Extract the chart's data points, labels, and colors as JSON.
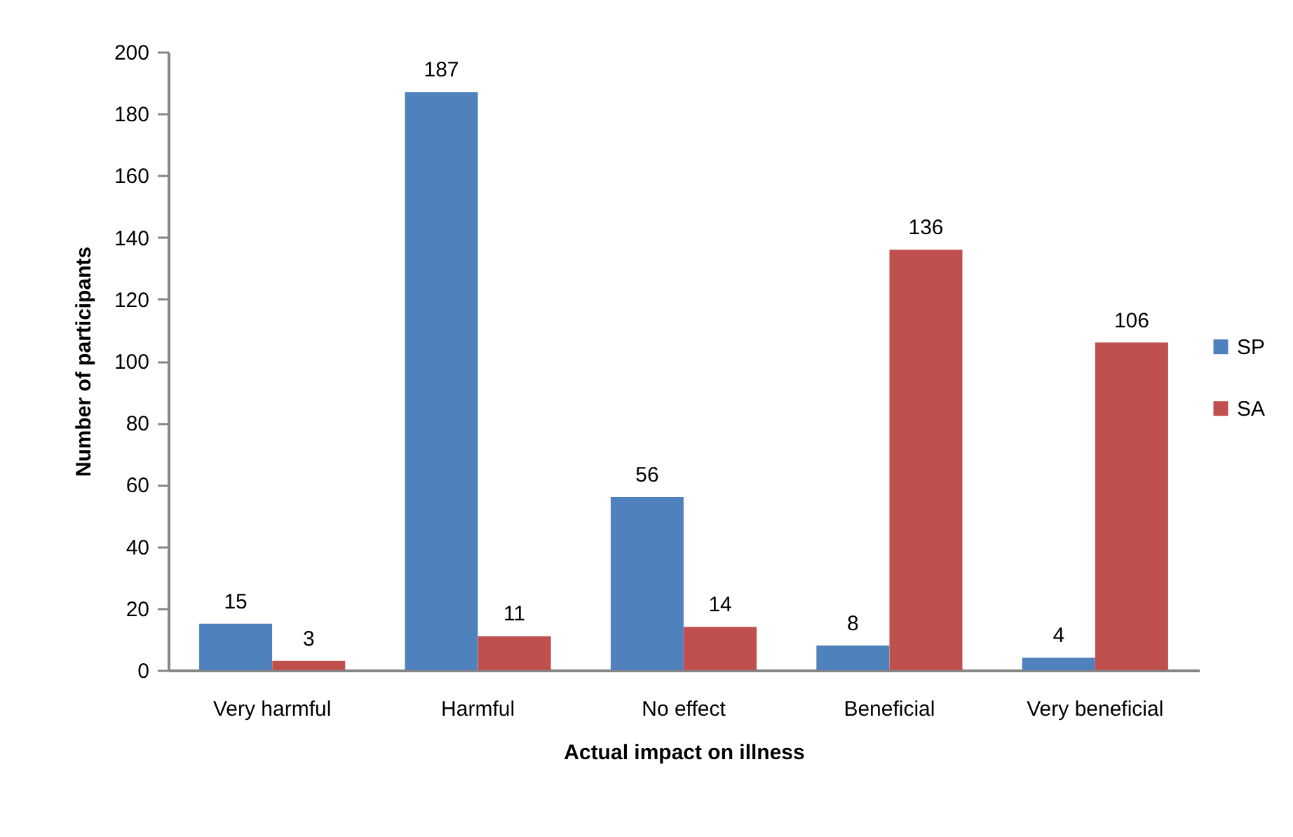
{
  "chart_data": {
    "type": "bar",
    "xlabel": "Actual impact on illness",
    "ylabel": "Number of participants",
    "categories": [
      "Very harmful",
      "Harmful",
      "No effect",
      "Beneficial",
      "Very beneficial"
    ],
    "series": [
      {
        "name": "SP",
        "color": "#4f81bd",
        "values": [
          15,
          187,
          56,
          8,
          4
        ]
      },
      {
        "name": "SA",
        "color": "#c0504d",
        "values": [
          3,
          11,
          14,
          136,
          106
        ]
      }
    ],
    "ylim": [
      0,
      200
    ],
    "yticks": [
      0,
      20,
      40,
      60,
      80,
      100,
      120,
      140,
      160,
      180,
      200
    ],
    "data_labels": true,
    "legend": "right",
    "grid": false
  }
}
